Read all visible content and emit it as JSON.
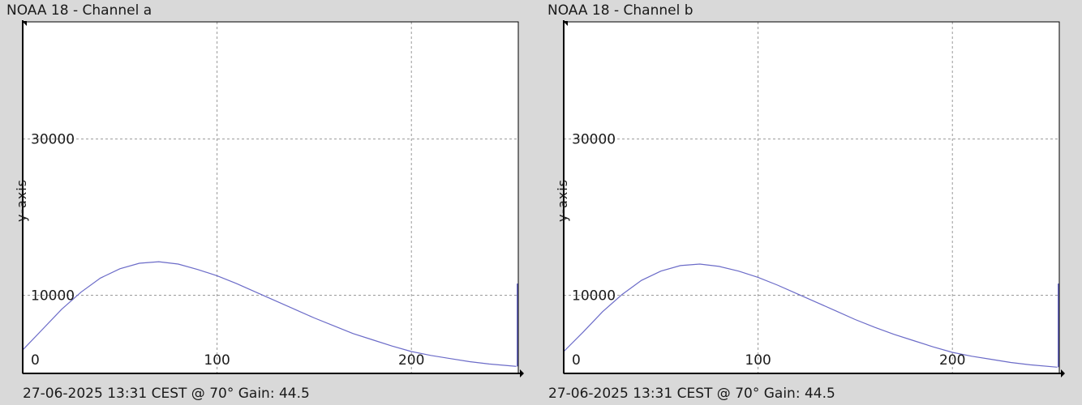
{
  "chart_data": [
    {
      "type": "line",
      "title": "NOAA 18 - Channel a",
      "footer": "27-06-2025 13:31 CEST @ 70° Gain: 44.5",
      "ylabel": "y-axis",
      "xlabel": "",
      "x_ticks": [
        0,
        100,
        200
      ],
      "y_ticks": [
        10000,
        30000
      ],
      "xlim": [
        0,
        255
      ],
      "ylim": [
        0,
        45000
      ],
      "grid": true,
      "series": [
        {
          "x": [
            0,
            10,
            20,
            30,
            40,
            50,
            60,
            70,
            80,
            90,
            100,
            110,
            120,
            130,
            140,
            150,
            160,
            170,
            180,
            190,
            200,
            210,
            220,
            230,
            240,
            254
          ],
          "y": [
            3000,
            5600,
            8200,
            10400,
            12200,
            13400,
            14100,
            14300,
            14000,
            13300,
            12500,
            11500,
            10400,
            9300,
            8200,
            7100,
            6100,
            5100,
            4300,
            3500,
            2800,
            2300,
            1900,
            1500,
            1200,
            900
          ]
        }
      ],
      "end_spike": [
        900,
        11500
      ],
      "color": "#6b6bc8"
    },
    {
      "type": "line",
      "title": "NOAA 18 - Channel b",
      "footer": "27-06-2025 13:31 CEST @ 70° Gain: 44.5",
      "ylabel": "y-axis",
      "xlabel": "",
      "x_ticks": [
        0,
        100,
        200
      ],
      "y_ticks": [
        10000,
        30000
      ],
      "xlim": [
        0,
        255
      ],
      "ylim": [
        0,
        45000
      ],
      "grid": true,
      "series": [
        {
          "x": [
            0,
            10,
            20,
            30,
            40,
            50,
            60,
            70,
            80,
            90,
            100,
            110,
            120,
            130,
            140,
            150,
            160,
            170,
            180,
            190,
            200,
            210,
            220,
            230,
            240,
            254
          ],
          "y": [
            2800,
            5300,
            7900,
            10100,
            11900,
            13100,
            13800,
            14000,
            13700,
            13100,
            12300,
            11300,
            10200,
            9100,
            8000,
            6900,
            5900,
            5000,
            4200,
            3400,
            2700,
            2200,
            1800,
            1400,
            1100,
            800
          ]
        }
      ],
      "end_spike": [
        800,
        11500
      ],
      "color": "#6b6bc8"
    }
  ]
}
